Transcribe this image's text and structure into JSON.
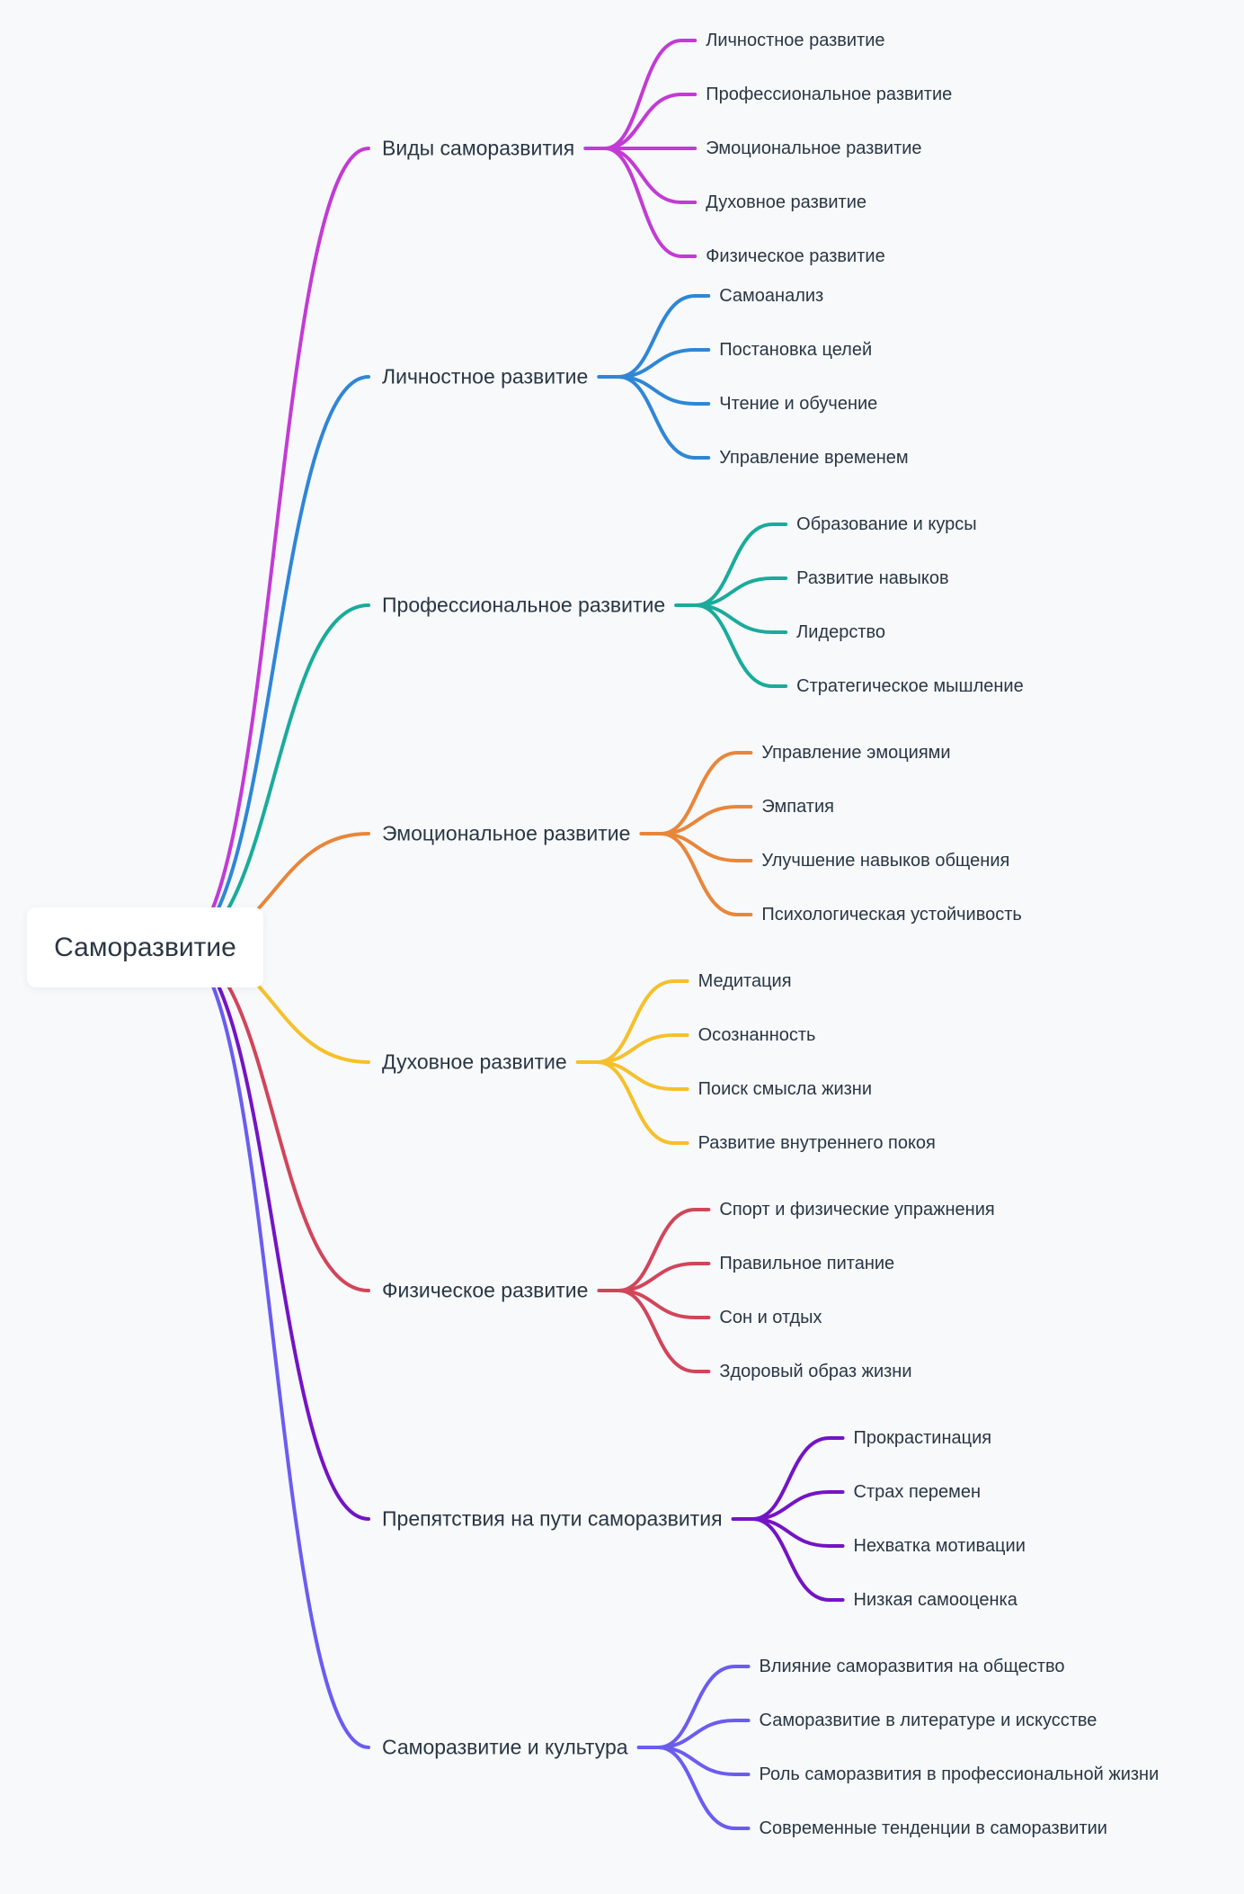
{
  "root": {
    "label": "Саморазвитие"
  },
  "branches": [
    {
      "label": "Виды саморазвития",
      "color": "#c23bd4",
      "children": [
        "Личностное развитие",
        "Профессиональное развитие",
        "Эмоциональное развитие",
        "Духовное развитие",
        "Физическое развитие"
      ]
    },
    {
      "label": "Личностное развитие",
      "color": "#2f86d6",
      "children": [
        "Самоанализ",
        "Постановка целей",
        "Чтение и обучение",
        "Управление временем"
      ]
    },
    {
      "label": "Профессиональное развитие",
      "color": "#1aab9b",
      "children": [
        "Образование и курсы",
        "Развитие навыков",
        "Лидерство",
        "Стратегическое мышление"
      ]
    },
    {
      "label": "Эмоциональное развитие",
      "color": "#e8863a",
      "children": [
        "Управление эмоциями",
        "Эмпатия",
        "Улучшение навыков общения",
        "Психологическая устойчивость"
      ]
    },
    {
      "label": "Духовное развитие",
      "color": "#f5c02a",
      "children": [
        "Медитация",
        "Осознанность",
        "Поиск смысла жизни",
        "Развитие внутреннего покоя"
      ]
    },
    {
      "label": "Физическое развитие",
      "color": "#d1455a",
      "children": [
        "Спорт и физические упражнения",
        "Правильное питание",
        "Сон и отдых",
        "Здоровый образ жизни"
      ]
    },
    {
      "label": "Препятствия на пути саморазвития",
      "color": "#7414c4",
      "children": [
        "Прокрастинация",
        "Страх перемен",
        "Нехватка мотивации",
        "Низкая самооценка"
      ]
    },
    {
      "label": "Саморазвитие и культура",
      "color": "#6b5cf0",
      "children": [
        "Влияние саморазвития на общество",
        "Саморазвитие в литературе и искусстве",
        "Роль саморазвития в профессиональной жизни",
        "Современные тенденции в саморазвитии"
      ]
    }
  ]
}
